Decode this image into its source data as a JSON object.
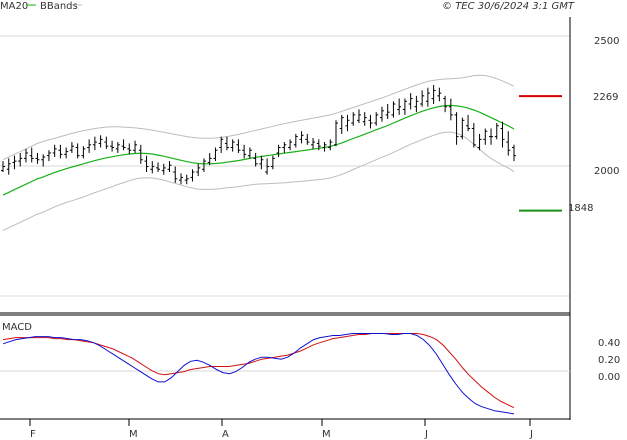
{
  "header": {
    "legend_ma20": "MA20",
    "legend_bbands": "BBands",
    "copyright": "© TEC 30/6/2024 3:1 GMT"
  },
  "colors": {
    "price_bars": "#000000",
    "ma20": "#19b019",
    "bbands": "#bdbdbd",
    "resistance": "#d40000",
    "support": "#1a8f1a",
    "macd_line": "#1010d0",
    "signal_line": "#d01010",
    "grid": "#d9d9d9",
    "axis": "#000000"
  },
  "price_axis": {
    "ticks": [
      "2500",
      "2000"
    ],
    "tick_values": [
      2500,
      2000
    ],
    "ylim": [
      1475,
      2560
    ]
  },
  "macd_axis": {
    "ticks": [
      "0.40",
      "0.20",
      "0.00"
    ],
    "tick_values": [
      0.4,
      0.2,
      0.0
    ],
    "ylim": [
      -0.42,
      0.55
    ]
  },
  "levels": {
    "resistance": {
      "value": 2269,
      "label": "2269"
    },
    "support": {
      "value": 1848,
      "label": "1848"
    }
  },
  "time_axis": {
    "labels": [
      "F",
      "M",
      "A",
      "M",
      "J",
      "J"
    ]
  },
  "macd_panel": {
    "title": "MACD"
  },
  "chart_data": {
    "type": "line",
    "price_ohlc": [
      [
        1995,
        2030,
        1990,
        2010
      ],
      [
        2000,
        2040,
        1980,
        2020
      ],
      [
        2025,
        2050,
        2000,
        2030
      ],
      [
        2030,
        2060,
        2010,
        2040
      ],
      [
        2040,
        2075,
        2025,
        2060
      ],
      [
        2050,
        2080,
        2025,
        2040
      ],
      [
        2040,
        2060,
        2020,
        2035
      ],
      [
        2035,
        2055,
        2010,
        2045
      ],
      [
        2050,
        2070,
        2030,
        2060
      ],
      [
        2060,
        2090,
        2045,
        2075
      ],
      [
        2070,
        2090,
        2040,
        2055
      ],
      [
        2055,
        2080,
        2040,
        2065
      ],
      [
        2070,
        2100,
        2060,
        2085
      ],
      [
        2080,
        2095,
        2040,
        2050
      ],
      [
        2050,
        2085,
        2040,
        2075
      ],
      [
        2080,
        2110,
        2060,
        2090
      ],
      [
        2090,
        2120,
        2070,
        2100
      ],
      [
        2095,
        2125,
        2080,
        2110
      ],
      [
        2100,
        2120,
        2075,
        2085
      ],
      [
        2085,
        2105,
        2065,
        2080
      ],
      [
        2075,
        2100,
        2060,
        2090
      ],
      [
        2085,
        2110,
        2070,
        2080
      ],
      [
        2075,
        2095,
        2055,
        2070
      ],
      [
        2070,
        2105,
        2060,
        2090
      ],
      [
        2070,
        2090,
        2020,
        2035
      ],
      [
        2030,
        2050,
        1990,
        2010
      ],
      [
        2000,
        2030,
        1985,
        2010
      ],
      [
        2005,
        2025,
        1990,
        2000
      ],
      [
        1995,
        2020,
        1980,
        2005
      ],
      [
        2000,
        2030,
        1990,
        2015
      ],
      [
        1990,
        2010,
        1950,
        1965
      ],
      [
        1960,
        1985,
        1945,
        1970
      ],
      [
        1960,
        1980,
        1945,
        1965
      ],
      [
        1970,
        2000,
        1955,
        1990
      ],
      [
        1990,
        2020,
        1975,
        2005
      ],
      [
        2000,
        2040,
        1990,
        2030
      ],
      [
        2025,
        2060,
        2015,
        2040
      ],
      [
        2040,
        2080,
        2030,
        2070
      ],
      [
        2080,
        2120,
        2060,
        2110
      ],
      [
        2095,
        2120,
        2070,
        2080
      ],
      [
        2080,
        2110,
        2065,
        2100
      ],
      [
        2090,
        2110,
        2060,
        2070
      ],
      [
        2070,
        2090,
        2040,
        2055
      ],
      [
        2050,
        2080,
        2040,
        2070
      ],
      [
        2040,
        2060,
        2010,
        2020
      ],
      [
        2020,
        2050,
        2000,
        2035
      ],
      [
        1990,
        2040,
        1980,
        2010
      ],
      [
        2010,
        2050,
        2000,
        2040
      ],
      [
        2060,
        2090,
        2045,
        2080
      ],
      [
        2080,
        2100,
        2060,
        2090
      ],
      [
        2080,
        2110,
        2070,
        2100
      ],
      [
        2090,
        2130,
        2080,
        2120
      ],
      [
        2110,
        2140,
        2095,
        2125
      ],
      [
        2110,
        2130,
        2090,
        2100
      ],
      [
        2090,
        2115,
        2075,
        2100
      ],
      [
        2095,
        2110,
        2070,
        2085
      ],
      [
        2080,
        2100,
        2065,
        2090
      ],
      [
        2080,
        2110,
        2070,
        2100
      ],
      [
        2090,
        2180,
        2085,
        2170
      ],
      [
        2150,
        2200,
        2130,
        2190
      ],
      [
        2160,
        2200,
        2140,
        2180
      ],
      [
        2170,
        2210,
        2160,
        2200
      ],
      [
        2180,
        2220,
        2170,
        2200
      ],
      [
        2175,
        2210,
        2160,
        2190
      ],
      [
        2180,
        2200,
        2150,
        2170
      ],
      [
        2170,
        2210,
        2160,
        2200
      ],
      [
        2190,
        2230,
        2175,
        2215
      ],
      [
        2200,
        2240,
        2185,
        2210
      ],
      [
        2200,
        2250,
        2190,
        2240
      ],
      [
        2220,
        2260,
        2200,
        2230
      ],
      [
        2220,
        2260,
        2200,
        2250
      ],
      [
        2240,
        2280,
        2220,
        2260
      ],
      [
        2230,
        2270,
        2210,
        2250
      ],
      [
        2240,
        2290,
        2230,
        2270
      ],
      [
        2250,
        2300,
        2230,
        2280
      ],
      [
        2260,
        2310,
        2240,
        2290
      ],
      [
        2270,
        2300,
        2250,
        2280
      ],
      [
        2260,
        2270,
        2210,
        2230
      ],
      [
        2230,
        2260,
        2180,
        2200
      ],
      [
        2200,
        2210,
        2090,
        2120
      ],
      [
        2120,
        2190,
        2110,
        2180
      ],
      [
        2160,
        2200,
        2140,
        2150
      ],
      [
        2150,
        2170,
        2080,
        2090
      ],
      [
        2080,
        2130,
        2070,
        2110
      ],
      [
        2110,
        2150,
        2090,
        2140
      ],
      [
        2120,
        2150,
        2090,
        2120
      ],
      [
        2120,
        2170,
        2110,
        2160
      ],
      [
        2150,
        2175,
        2080,
        2110
      ],
      [
        2100,
        2140,
        2050,
        2070
      ],
      [
        2080,
        2090,
        2030,
        2050
      ]
    ],
    "ma20": [
      1905,
      1915,
      1925,
      1935,
      1945,
      1955,
      1965,
      1972,
      1980,
      1988,
      1995,
      2002,
      2008,
      2014,
      2020,
      2026,
      2032,
      2037,
      2042,
      2046,
      2050,
      2053,
      2056,
      2058,
      2059,
      2058,
      2056,
      2052,
      2048,
      2043,
      2038,
      2033,
      2028,
      2024,
      2021,
      2020,
      2020,
      2021,
      2023,
      2026,
      2029,
      2032,
      2036,
      2040,
      2044,
      2047,
      2050,
      2053,
      2056,
      2059,
      2062,
      2065,
      2068,
      2071,
      2074,
      2077,
      2080,
      2084,
      2090,
      2097,
      2105,
      2113,
      2121,
      2129,
      2137,
      2145,
      2153,
      2161,
      2170,
      2179,
      2188,
      2197,
      2205,
      2213,
      2220,
      2226,
      2231,
      2234,
      2235,
      2233,
      2230,
      2225,
      2218,
      2210,
      2200,
      2190,
      2180,
      2170,
      2160,
      2148
    ],
    "bb_upper": [
      2035,
      2045,
      2055,
      2065,
      2075,
      2085,
      2095,
      2102,
      2108,
      2114,
      2120,
      2126,
      2132,
      2137,
      2142,
      2146,
      2150,
      2153,
      2155,
      2156,
      2156,
      2155,
      2154,
      2152,
      2150,
      2147,
      2144,
      2140,
      2136,
      2132,
      2128,
      2124,
      2120,
      2117,
      2115,
      2114,
      2114,
      2115,
      2117,
      2120,
      2124,
      2128,
      2133,
      2138,
      2143,
      2148,
      2153,
      2158,
      2163,
      2168,
      2172,
      2176,
      2180,
      2184,
      2188,
      2192,
      2196,
      2200,
      2206,
      2213,
      2220,
      2227,
      2234,
      2241,
      2248,
      2255,
      2262,
      2270,
      2278,
      2286,
      2294,
      2302,
      2310,
      2317,
      2323,
      2327,
      2330,
      2332,
      2333,
      2334,
      2336,
      2340,
      2345,
      2346,
      2345,
      2340,
      2333,
      2325,
      2315,
      2305
    ],
    "bb_lower": [
      1775,
      1785,
      1795,
      1805,
      1815,
      1825,
      1835,
      1842,
      1852,
      1862,
      1870,
      1878,
      1884,
      1891,
      1898,
      1906,
      1914,
      1921,
      1929,
      1936,
      1944,
      1951,
      1958,
      1964,
      1968,
      1969,
      1968,
      1964,
      1960,
      1954,
      1948,
      1942,
      1936,
      1931,
      1927,
      1926,
      1926,
      1927,
      1929,
      1932,
      1934,
      1936,
      1939,
      1942,
      1945,
      1946,
      1947,
      1948,
      1949,
      1950,
      1952,
      1954,
      1956,
      1958,
      1960,
      1962,
      1964,
      1968,
      1974,
      1981,
      1990,
      1999,
      2008,
      2017,
      2026,
      2035,
      2044,
      2052,
      2062,
      2072,
      2082,
      2092,
      2100,
      2109,
      2117,
      2125,
      2132,
      2136,
      2137,
      2132,
      2124,
      2110,
      2091,
      2074,
      2055,
      2040,
      2027,
      2015,
      2005,
      1991
    ],
    "macd": [
      0.3,
      0.32,
      0.34,
      0.35,
      0.36,
      0.37,
      0.37,
      0.37,
      0.36,
      0.36,
      0.35,
      0.34,
      0.34,
      0.33,
      0.31,
      0.28,
      0.24,
      0.2,
      0.16,
      0.12,
      0.08,
      0.04,
      0.0,
      -0.04,
      -0.07,
      -0.07,
      -0.03,
      0.03,
      0.09,
      0.13,
      0.14,
      0.12,
      0.09,
      0.05,
      0.02,
      0.01,
      0.03,
      0.07,
      0.12,
      0.15,
      0.17,
      0.17,
      0.16,
      0.15,
      0.17,
      0.21,
      0.26,
      0.3,
      0.34,
      0.36,
      0.37,
      0.38,
      0.38,
      0.39,
      0.4,
      0.4,
      0.4,
      0.4,
      0.4,
      0.4,
      0.39,
      0.39,
      0.4,
      0.4,
      0.38,
      0.34,
      0.28,
      0.2,
      0.1,
      0.0,
      -0.09,
      -0.17,
      -0.23,
      -0.28,
      -0.31,
      -0.33,
      -0.35,
      -0.36,
      -0.37,
      -0.38
    ],
    "signal": [
      0.34,
      0.35,
      0.36,
      0.36,
      0.36,
      0.36,
      0.36,
      0.36,
      0.35,
      0.35,
      0.34,
      0.34,
      0.33,
      0.32,
      0.31,
      0.29,
      0.27,
      0.25,
      0.22,
      0.19,
      0.16,
      0.12,
      0.08,
      0.04,
      0.01,
      0.0,
      0.01,
      0.02,
      0.03,
      0.05,
      0.06,
      0.07,
      0.08,
      0.08,
      0.08,
      0.08,
      0.09,
      0.1,
      0.11,
      0.13,
      0.15,
      0.16,
      0.17,
      0.18,
      0.19,
      0.21,
      0.23,
      0.26,
      0.29,
      0.31,
      0.33,
      0.35,
      0.36,
      0.37,
      0.38,
      0.39,
      0.39,
      0.4,
      0.4,
      0.4,
      0.4,
      0.4,
      0.4,
      0.4,
      0.4,
      0.39,
      0.37,
      0.34,
      0.29,
      0.22,
      0.15,
      0.07,
      0.0,
      -0.06,
      -0.12,
      -0.17,
      -0.22,
      -0.26,
      -0.29,
      -0.32
    ],
    "legend": [
      "MA20",
      "BBands"
    ]
  }
}
